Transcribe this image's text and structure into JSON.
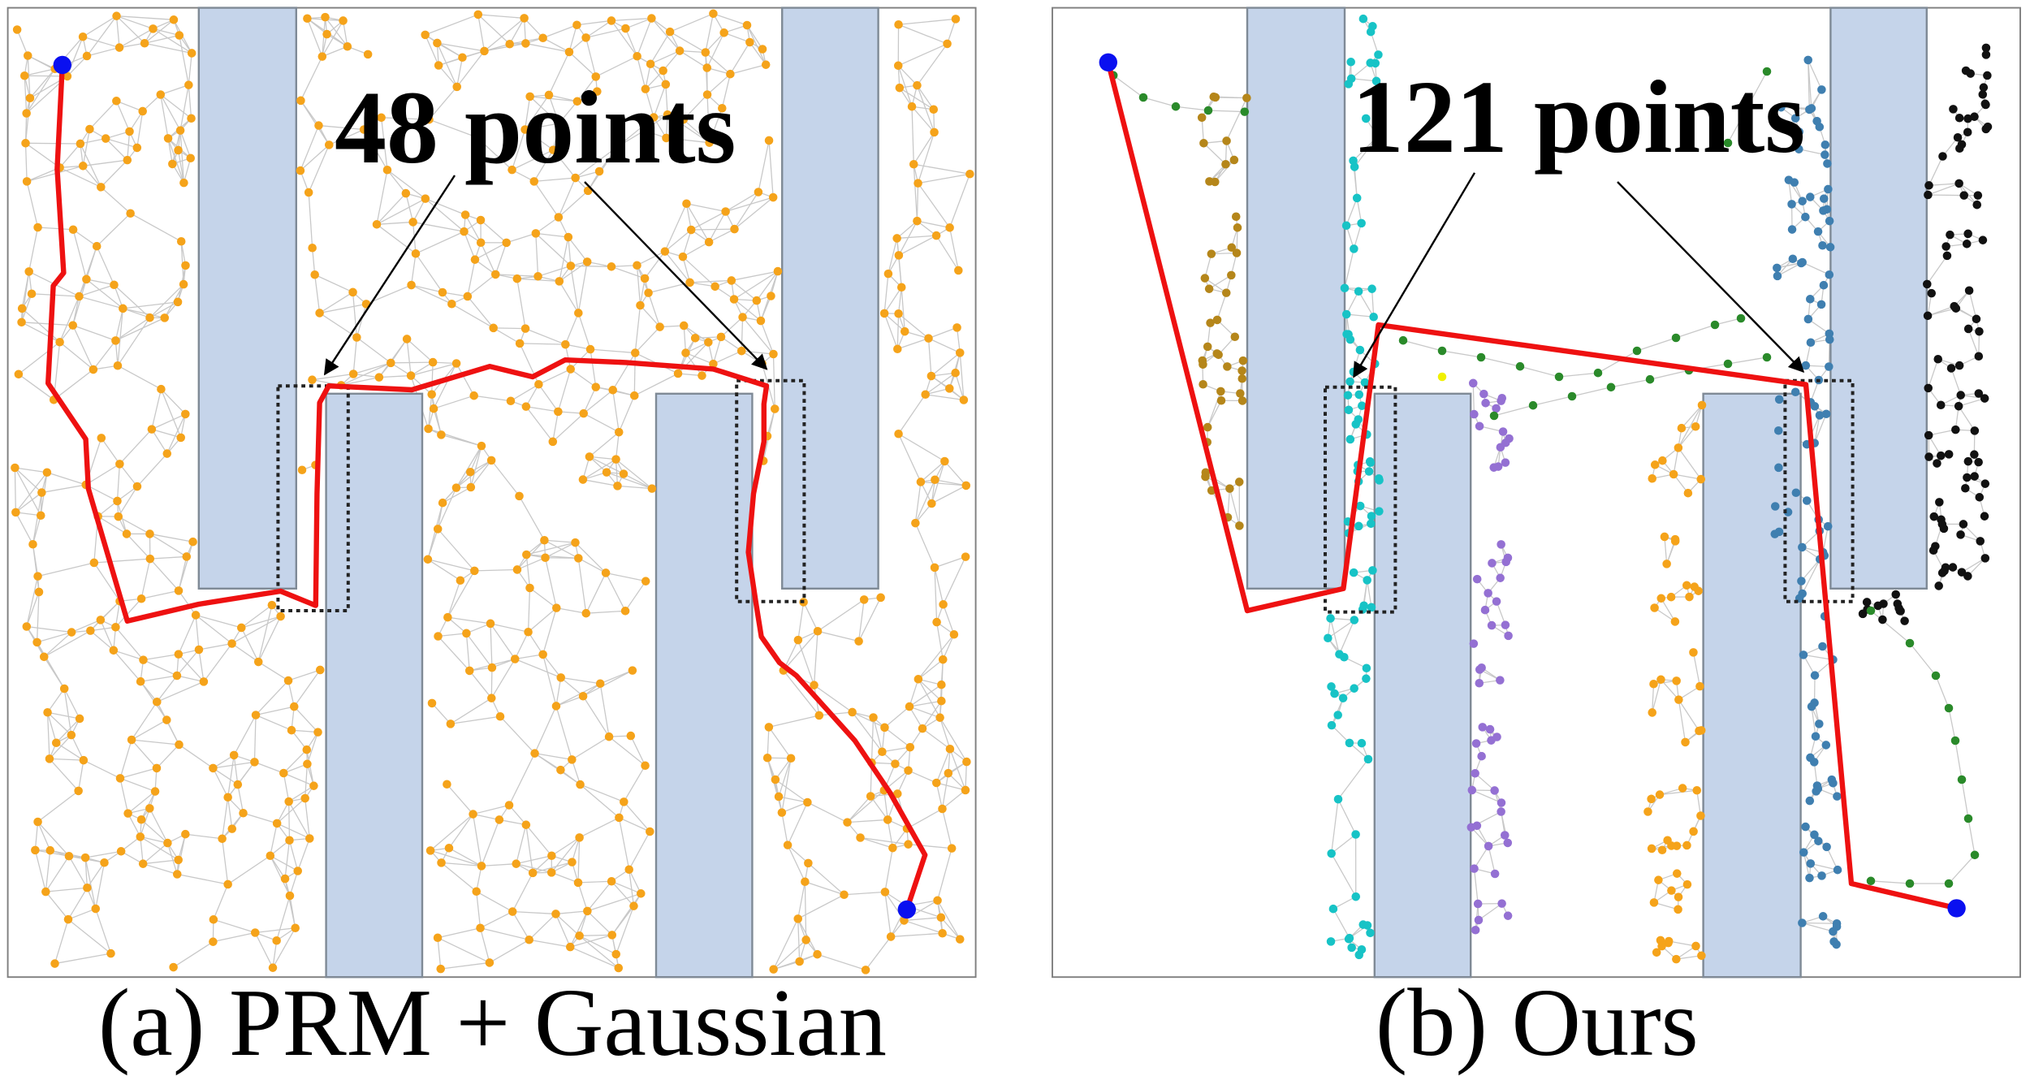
{
  "panels": [
    {
      "id": "a",
      "caption": "(a) PRM + Gaussian",
      "annotation": "48 points",
      "colors": {
        "obstacle": "#c5d4ea",
        "obstacle_edge": "#7f8a96",
        "node": "#f5a31a",
        "edge": "#c8c8c8",
        "path": "#ee1111",
        "endpoint": "#0a10f0"
      },
      "path": [
        [
          48,
          50
        ],
        [
          44,
          130
        ],
        [
          49,
          210
        ],
        [
          41,
          220
        ],
        [
          37,
          295
        ],
        [
          66,
          338
        ],
        [
          68,
          376
        ],
        [
          98,
          478
        ],
        [
          153,
          465
        ],
        [
          216,
          455
        ],
        [
          243,
          466
        ],
        [
          244,
          380
        ],
        [
          246,
          310
        ],
        [
          253,
          297
        ],
        [
          317,
          300
        ],
        [
          377,
          282
        ],
        [
          410,
          290
        ],
        [
          435,
          277
        ],
        [
          482,
          279
        ],
        [
          549,
          284
        ],
        [
          590,
          297
        ],
        [
          588,
          311
        ],
        [
          588,
          340
        ],
        [
          580,
          380
        ],
        [
          576,
          425
        ],
        [
          582,
          465
        ],
        [
          586,
          490
        ],
        [
          600,
          510
        ],
        [
          613,
          520
        ],
        [
          658,
          570
        ],
        [
          685,
          610
        ],
        [
          712,
          658
        ],
        [
          698,
          700
        ]
      ]
    },
    {
      "id": "b",
      "caption": "(b) Ours",
      "annotation": "121 points",
      "colors": {
        "obstacle": "#c5d4ea",
        "obstacle_edge": "#7f8a96",
        "node": "#f5a31a",
        "edge": "#c8c8c8",
        "path": "#ee1111",
        "endpoint": "#0a10f0"
      },
      "path": [
        [
          853,
          48
        ],
        [
          960,
          470
        ],
        [
          1034,
          453
        ],
        [
          1061,
          250
        ],
        [
          1390,
          296
        ],
        [
          1425,
          680
        ],
        [
          1506,
          699
        ]
      ]
    }
  ]
}
